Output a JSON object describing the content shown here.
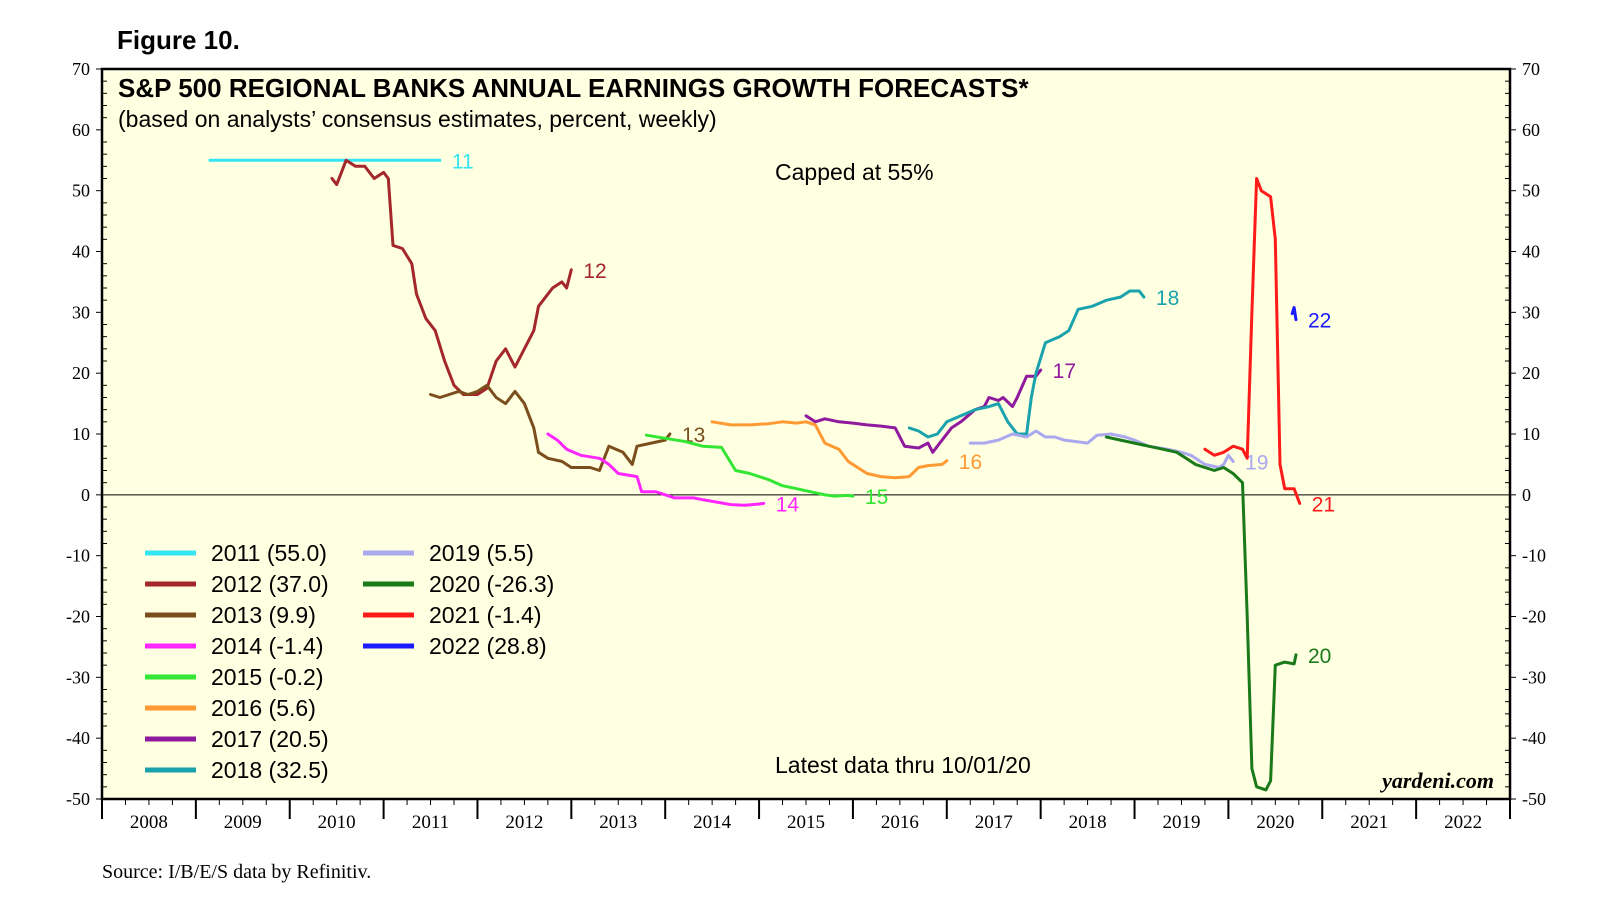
{
  "figure_label": "Figure 10.",
  "source": "Source: I/B/E/S data by Refinitiv.",
  "brand": "yardeni.com",
  "chart_data": {
    "type": "line",
    "title": "S&P 500 REGIONAL BANKS ANNUAL EARNINGS GROWTH FORECASTS*",
    "subtitle": "(based on analysts’ consensus estimates, percent, weekly)",
    "annotations": [
      "Capped at 55%",
      "Latest data thru  10/01/20"
    ],
    "ylim": [
      -50,
      70
    ],
    "yticks": [
      70,
      60,
      50,
      40,
      30,
      20,
      10,
      0,
      -10,
      -20,
      -30,
      -40,
      -50
    ],
    "ytick_labels": [
      "70",
      "60",
      "50",
      "40",
      "30",
      "20",
      "10",
      "0",
      "-10",
      "-20",
      "-30",
      "-40",
      "-50"
    ],
    "xlim": [
      2008,
      2023
    ],
    "x_categories": [
      "2008",
      "2009",
      "2010",
      "2011",
      "2012",
      "2013",
      "2014",
      "2015",
      "2016",
      "2017",
      "2018",
      "2019",
      "2020",
      "2021",
      "2022"
    ],
    "legend_location": "bottom-left",
    "series": [
      {
        "name": "2011",
        "legend": "2011 (55.0)",
        "end_label": "11",
        "color": "#33e6f2",
        "points": [
          [
            2009.15,
            55
          ],
          [
            2011.6,
            55
          ]
        ]
      },
      {
        "name": "2012",
        "legend": "2012 (37.0)",
        "end_label": "12",
        "color": "#a3272b",
        "points": [
          [
            2010.45,
            52
          ],
          [
            2010.5,
            51
          ],
          [
            2010.55,
            53
          ],
          [
            2010.6,
            55
          ],
          [
            2010.7,
            54
          ],
          [
            2010.8,
            54
          ],
          [
            2010.9,
            52
          ],
          [
            2011.0,
            53
          ],
          [
            2011.05,
            52
          ],
          [
            2011.1,
            41
          ],
          [
            2011.2,
            40.5
          ],
          [
            2011.3,
            38
          ],
          [
            2011.35,
            33
          ],
          [
            2011.45,
            29
          ],
          [
            2011.55,
            27
          ],
          [
            2011.65,
            22
          ],
          [
            2011.75,
            18
          ],
          [
            2011.85,
            16.5
          ],
          [
            2012.0,
            16.5
          ],
          [
            2012.1,
            17.5
          ],
          [
            2012.2,
            22
          ],
          [
            2012.3,
            24
          ],
          [
            2012.4,
            21
          ],
          [
            2012.5,
            24
          ],
          [
            2012.6,
            27
          ],
          [
            2012.65,
            31
          ],
          [
            2012.75,
            33
          ],
          [
            2012.8,
            34
          ],
          [
            2012.9,
            35
          ],
          [
            2012.95,
            34
          ],
          [
            2013.0,
            37
          ]
        ]
      },
      {
        "name": "2013",
        "legend": "2013 (9.9)",
        "end_label": "13",
        "color": "#7b4f1d",
        "points": [
          [
            2011.5,
            16.5
          ],
          [
            2011.6,
            16
          ],
          [
            2011.7,
            16.5
          ],
          [
            2011.8,
            17
          ],
          [
            2011.9,
            16.5
          ],
          [
            2012.0,
            17
          ],
          [
            2012.1,
            18
          ],
          [
            2012.2,
            16
          ],
          [
            2012.3,
            15
          ],
          [
            2012.4,
            17
          ],
          [
            2012.5,
            15
          ],
          [
            2012.55,
            13
          ],
          [
            2012.6,
            11
          ],
          [
            2012.65,
            7
          ],
          [
            2012.75,
            6
          ],
          [
            2012.9,
            5.5
          ],
          [
            2013.0,
            4.5
          ],
          [
            2013.2,
            4.5
          ],
          [
            2013.3,
            4
          ],
          [
            2013.4,
            8
          ],
          [
            2013.55,
            7
          ],
          [
            2013.65,
            5
          ],
          [
            2013.7,
            8
          ],
          [
            2013.85,
            8.5
          ],
          [
            2014.0,
            9
          ],
          [
            2014.05,
            10
          ]
        ]
      },
      {
        "name": "2014",
        "legend": "2014 (-1.4)",
        "end_label": "14",
        "color": "#ff26ff",
        "points": [
          [
            2012.75,
            10
          ],
          [
            2012.85,
            9
          ],
          [
            2012.95,
            7.5
          ],
          [
            2013.1,
            6.5
          ],
          [
            2013.3,
            6
          ],
          [
            2013.4,
            5
          ],
          [
            2013.5,
            3.5
          ],
          [
            2013.7,
            3
          ],
          [
            2013.75,
            0.5
          ],
          [
            2013.9,
            0.5
          ],
          [
            2014.0,
            0
          ],
          [
            2014.1,
            -0.5
          ],
          [
            2014.3,
            -0.5
          ],
          [
            2014.4,
            -0.8
          ],
          [
            2014.55,
            -1.2
          ],
          [
            2014.7,
            -1.6
          ],
          [
            2014.85,
            -1.7
          ],
          [
            2015.0,
            -1.5
          ],
          [
            2015.05,
            -1.4
          ]
        ]
      },
      {
        "name": "2015",
        "legend": "2015 (-0.2)",
        "end_label": "15",
        "color": "#33e633",
        "points": [
          [
            2013.8,
            9.8
          ],
          [
            2014.0,
            9.3
          ],
          [
            2014.2,
            8.8
          ],
          [
            2014.4,
            8
          ],
          [
            2014.6,
            7.8
          ],
          [
            2014.75,
            4
          ],
          [
            2014.9,
            3.5
          ],
          [
            2015.1,
            2.5
          ],
          [
            2015.25,
            1.5
          ],
          [
            2015.4,
            1
          ],
          [
            2015.55,
            0.5
          ],
          [
            2015.7,
            0
          ],
          [
            2015.8,
            -0.2
          ],
          [
            2015.95,
            -0.1
          ],
          [
            2016.0,
            -0.2
          ]
        ]
      },
      {
        "name": "2016",
        "legend": "2016 (5.6)",
        "end_label": "16",
        "color": "#ff9933",
        "points": [
          [
            2014.5,
            12
          ],
          [
            2014.7,
            11.5
          ],
          [
            2014.9,
            11.5
          ],
          [
            2015.1,
            11.7
          ],
          [
            2015.25,
            12
          ],
          [
            2015.4,
            11.8
          ],
          [
            2015.5,
            12
          ],
          [
            2015.6,
            11.5
          ],
          [
            2015.7,
            8.5
          ],
          [
            2015.85,
            7.5
          ],
          [
            2015.95,
            5.5
          ],
          [
            2016.05,
            4.5
          ],
          [
            2016.15,
            3.5
          ],
          [
            2016.3,
            3
          ],
          [
            2016.45,
            2.8
          ],
          [
            2016.6,
            3
          ],
          [
            2016.7,
            4.5
          ],
          [
            2016.8,
            4.8
          ],
          [
            2016.95,
            5
          ],
          [
            2017.0,
            5.6
          ]
        ]
      },
      {
        "name": "2017",
        "legend": "2017 (20.5)",
        "end_label": "17",
        "color": "#8f1a9e",
        "points": [
          [
            2015.5,
            13
          ],
          [
            2015.6,
            12
          ],
          [
            2015.7,
            12.5
          ],
          [
            2015.85,
            12
          ],
          [
            2016.0,
            11.8
          ],
          [
            2016.15,
            11.5
          ],
          [
            2016.3,
            11.3
          ],
          [
            2016.45,
            11
          ],
          [
            2016.55,
            8
          ],
          [
            2016.7,
            7.7
          ],
          [
            2016.8,
            8.5
          ],
          [
            2016.85,
            7
          ],
          [
            2016.95,
            9
          ],
          [
            2017.05,
            11
          ],
          [
            2017.15,
            12
          ],
          [
            2017.3,
            14
          ],
          [
            2017.4,
            14.5
          ],
          [
            2017.45,
            16
          ],
          [
            2017.55,
            15.5
          ],
          [
            2017.6,
            16
          ],
          [
            2017.7,
            14.5
          ],
          [
            2017.75,
            16
          ],
          [
            2017.85,
            19.5
          ],
          [
            2017.95,
            19.5
          ],
          [
            2018.0,
            20.5
          ]
        ]
      },
      {
        "name": "2018",
        "legend": "2018 (32.5)",
        "end_label": "18",
        "color": "#1aa3ad",
        "points": [
          [
            2016.6,
            11
          ],
          [
            2016.7,
            10.5
          ],
          [
            2016.8,
            9.5
          ],
          [
            2016.9,
            10
          ],
          [
            2017.0,
            12
          ],
          [
            2017.15,
            13
          ],
          [
            2017.3,
            14
          ],
          [
            2017.45,
            14.5
          ],
          [
            2017.55,
            15
          ],
          [
            2017.65,
            12
          ],
          [
            2017.75,
            10
          ],
          [
            2017.85,
            10
          ],
          [
            2017.9,
            16
          ],
          [
            2017.95,
            20
          ],
          [
            2018.05,
            25
          ],
          [
            2018.2,
            26
          ],
          [
            2018.3,
            27
          ],
          [
            2018.4,
            30.5
          ],
          [
            2018.55,
            31
          ],
          [
            2018.7,
            32
          ],
          [
            2018.85,
            32.5
          ],
          [
            2018.95,
            33.5
          ],
          [
            2019.05,
            33.5
          ],
          [
            2019.1,
            32.5
          ]
        ]
      },
      {
        "name": "2019",
        "legend": "2019 (5.5)",
        "end_label": "19",
        "color": "#aaa9f0",
        "points": [
          [
            2017.25,
            8.5
          ],
          [
            2017.4,
            8.5
          ],
          [
            2017.55,
            9
          ],
          [
            2017.7,
            10
          ],
          [
            2017.85,
            9.5
          ],
          [
            2017.95,
            10.5
          ],
          [
            2018.05,
            9.5
          ],
          [
            2018.15,
            9.5
          ],
          [
            2018.25,
            9
          ],
          [
            2018.35,
            8.8
          ],
          [
            2018.5,
            8.5
          ],
          [
            2018.6,
            9.8
          ],
          [
            2018.75,
            10
          ],
          [
            2018.9,
            9.5
          ],
          [
            2019.0,
            9
          ],
          [
            2019.15,
            8
          ],
          [
            2019.35,
            7.5
          ],
          [
            2019.5,
            7
          ],
          [
            2019.6,
            6.5
          ],
          [
            2019.75,
            5
          ],
          [
            2019.9,
            4.5
          ],
          [
            2019.95,
            5
          ],
          [
            2020.0,
            6.5
          ],
          [
            2020.05,
            5.5
          ]
        ]
      },
      {
        "name": "2020",
        "legend": "2020 (-26.3)",
        "end_label": "20",
        "color": "#1a7a1a",
        "points": [
          [
            2018.7,
            9.5
          ],
          [
            2018.85,
            9
          ],
          [
            2019.0,
            8.5
          ],
          [
            2019.15,
            8
          ],
          [
            2019.3,
            7.5
          ],
          [
            2019.45,
            7
          ],
          [
            2019.55,
            6
          ],
          [
            2019.65,
            5
          ],
          [
            2019.75,
            4.5
          ],
          [
            2019.85,
            4
          ],
          [
            2019.95,
            4.5
          ],
          [
            2020.05,
            3.5
          ],
          [
            2020.15,
            2
          ],
          [
            2020.2,
            -20
          ],
          [
            2020.25,
            -45
          ],
          [
            2020.3,
            -48
          ],
          [
            2020.4,
            -48.5
          ],
          [
            2020.45,
            -47
          ],
          [
            2020.5,
            -28
          ],
          [
            2020.6,
            -27.5
          ],
          [
            2020.7,
            -27.8
          ],
          [
            2020.72,
            -26.3
          ]
        ]
      },
      {
        "name": "2021",
        "legend": "2021 (-1.4)",
        "end_label": "21",
        "color": "#ff1a1a",
        "points": [
          [
            2019.75,
            7.5
          ],
          [
            2019.85,
            6.5
          ],
          [
            2019.95,
            7
          ],
          [
            2020.05,
            8
          ],
          [
            2020.15,
            7.5
          ],
          [
            2020.2,
            6
          ],
          [
            2020.25,
            30
          ],
          [
            2020.3,
            52
          ],
          [
            2020.35,
            50
          ],
          [
            2020.45,
            49
          ],
          [
            2020.5,
            42
          ],
          [
            2020.55,
            5
          ],
          [
            2020.6,
            1
          ],
          [
            2020.7,
            1
          ],
          [
            2020.76,
            -1.4
          ]
        ]
      },
      {
        "name": "2022",
        "legend": "2022 (28.8)",
        "end_label": "22",
        "color": "#1a1aff",
        "points": [
          [
            2020.68,
            29.8
          ],
          [
            2020.7,
            30.8
          ],
          [
            2020.72,
            28.8
          ]
        ]
      }
    ]
  }
}
